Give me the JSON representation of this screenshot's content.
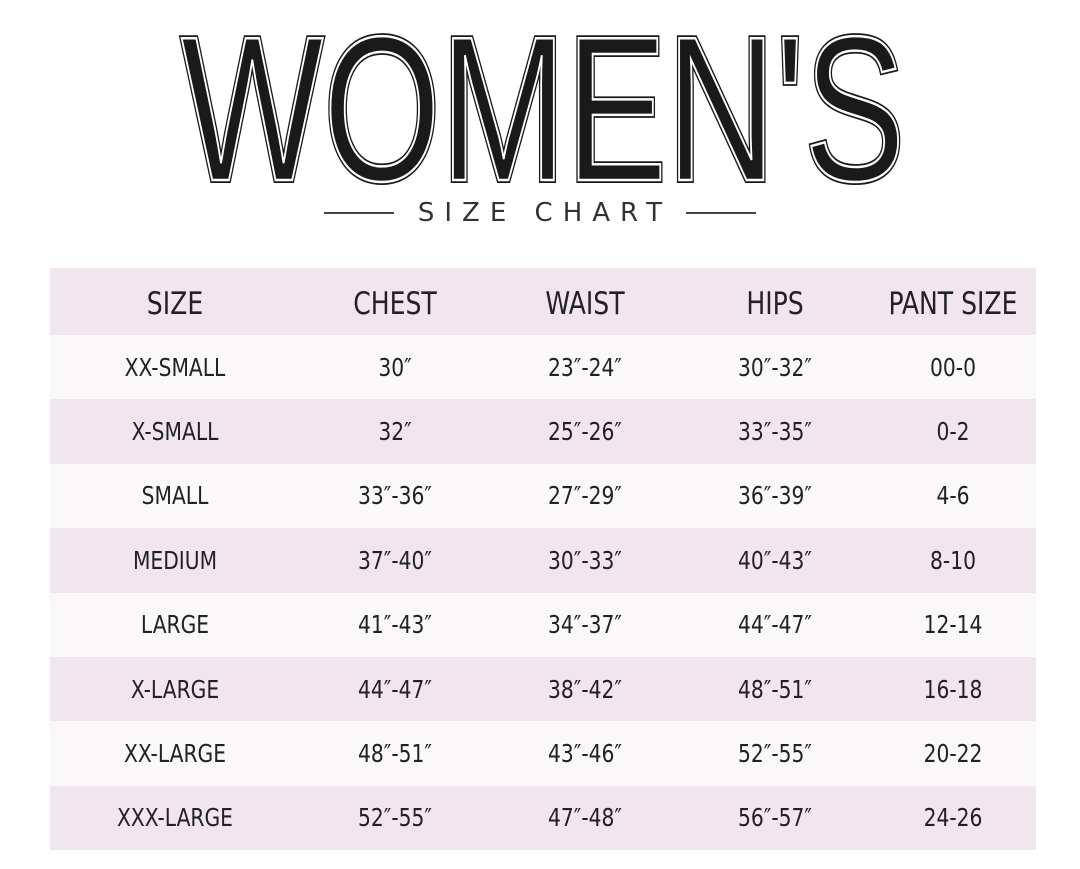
{
  "title": "WOMEN'S",
  "subtitle": "SIZE CHART",
  "colors": {
    "header_bg": "#f1e6ed",
    "row_alt_bg": "#f1e6ed",
    "row_bg": "#fbf8fa",
    "text": "#222222"
  },
  "table": {
    "columns": [
      "SIZE",
      "CHEST",
      "WAIST",
      "HIPS",
      "PANT SIZE"
    ],
    "rows": [
      [
        "XX-SMALL",
        "30″",
        "23″-24″",
        "30″-32″",
        "00-0"
      ],
      [
        "X-SMALL",
        "32″",
        "25″-26″",
        "33″-35″",
        "0-2"
      ],
      [
        "SMALL",
        "33″-36″",
        "27″-29″",
        "36″-39″",
        "4-6"
      ],
      [
        "MEDIUM",
        "37″-40″",
        "30″-33″",
        "40″-43″",
        "8-10"
      ],
      [
        "LARGE",
        "41″-43″",
        "34″-37″",
        "44″-47″",
        "12-14"
      ],
      [
        "X-LARGE",
        "44″-47″",
        "38″-42″",
        "48″-51″",
        "16-18"
      ],
      [
        "XX-LARGE",
        "48″-51″",
        "43″-46″",
        "52″-55″",
        "20-22"
      ],
      [
        "XXX-LARGE",
        "52″-55″",
        "47″-48″",
        "56″-57″",
        "24-26"
      ]
    ]
  }
}
